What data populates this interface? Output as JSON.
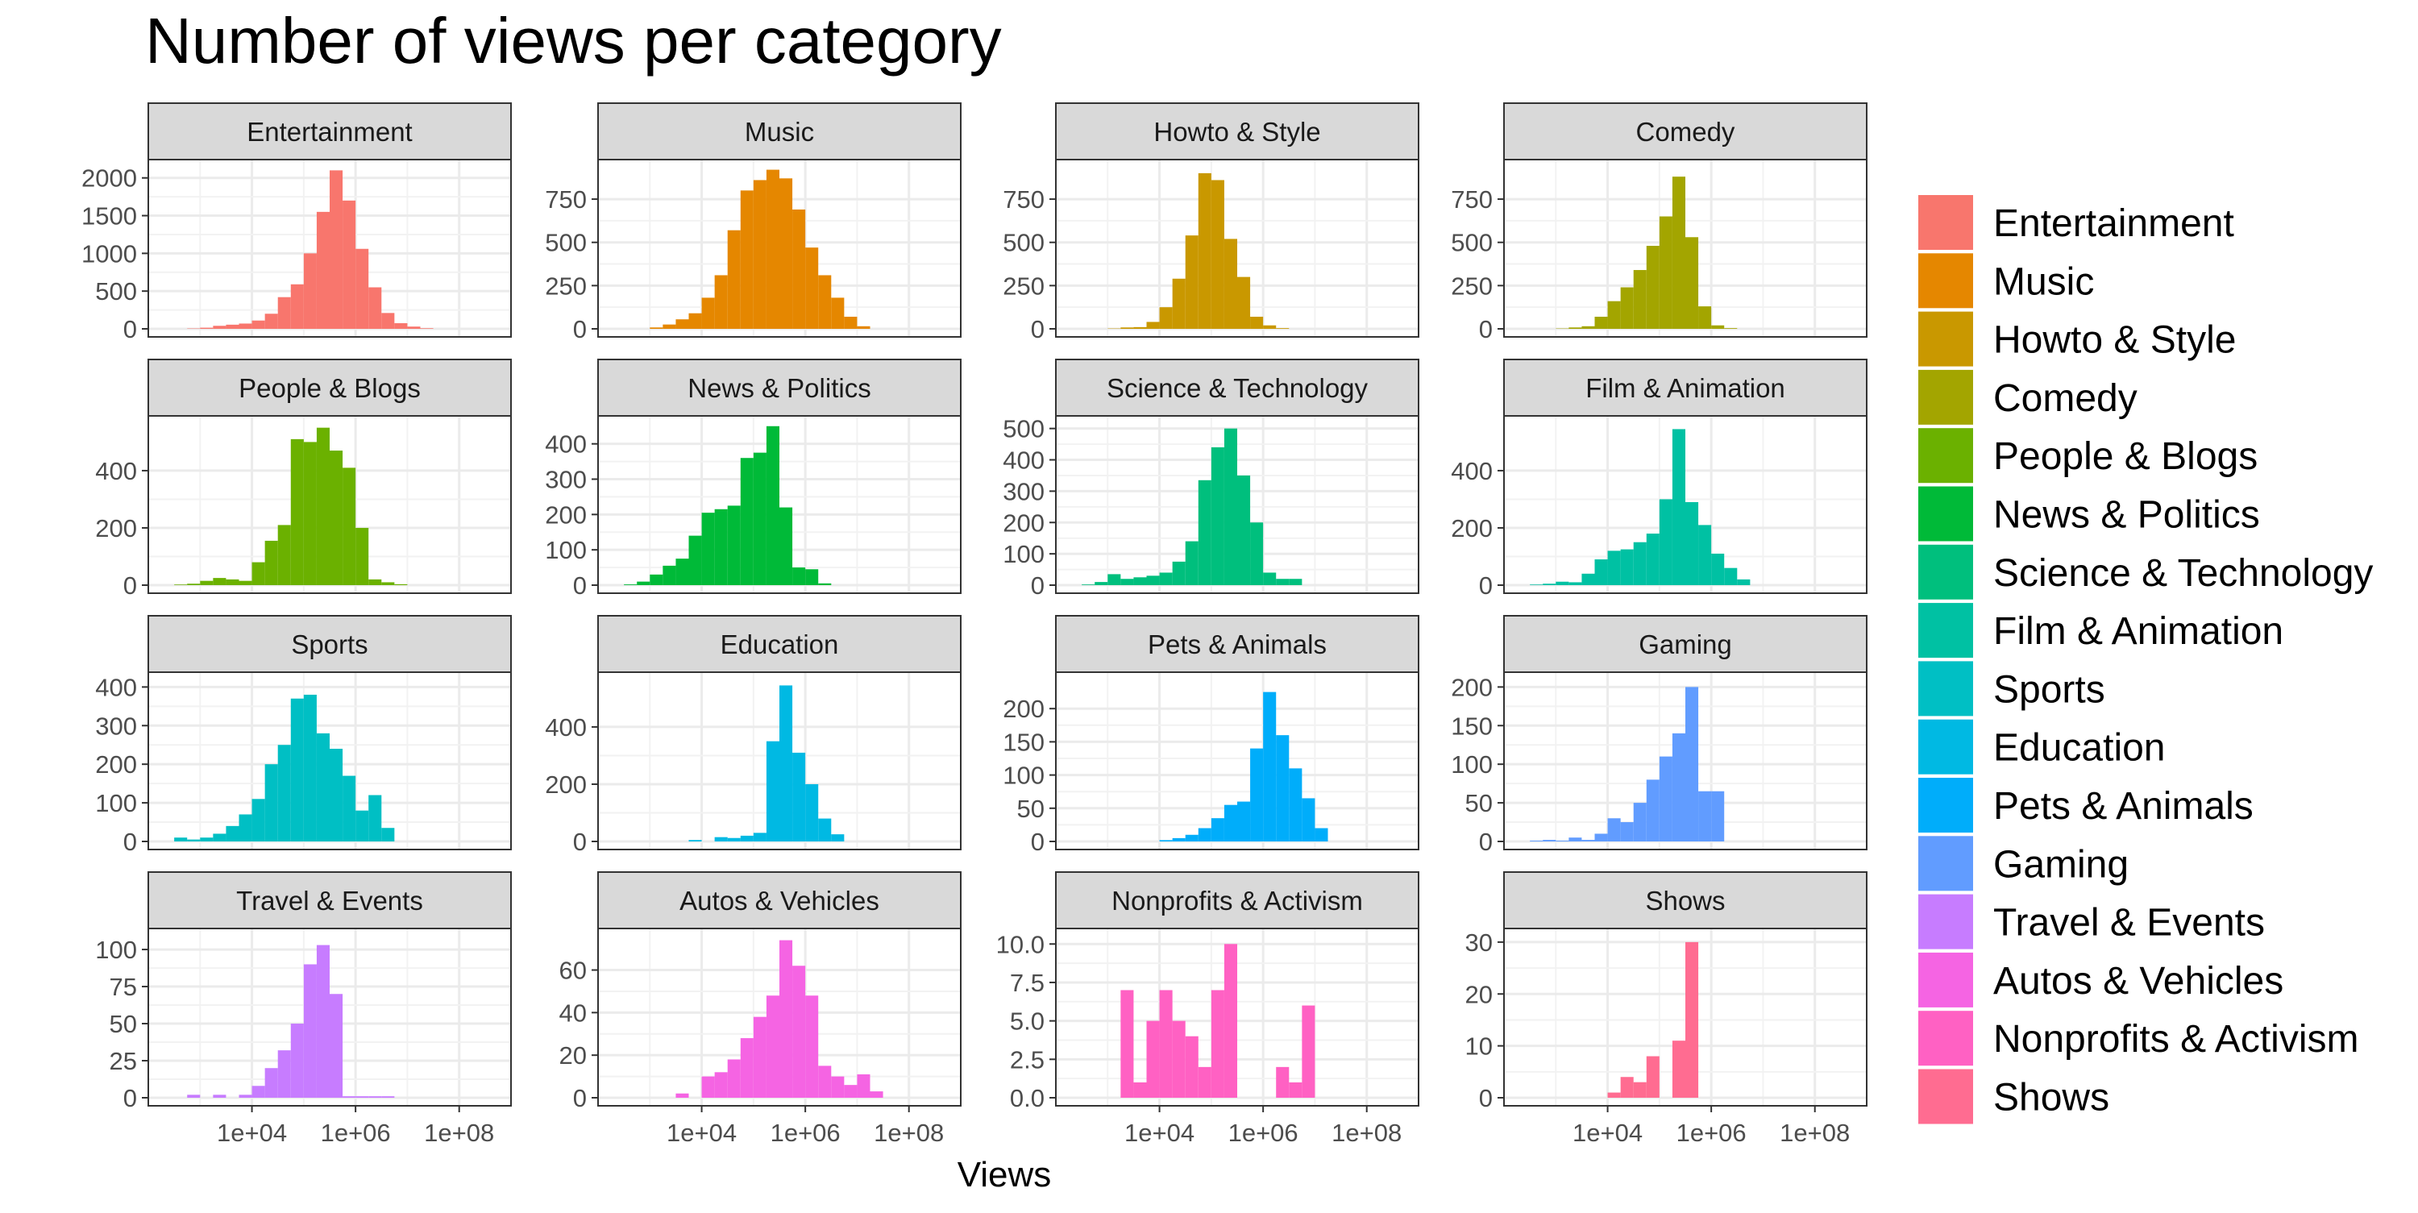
{
  "title": "Number of views per category",
  "xlabel": "Views",
  "ylabel": "",
  "chart_data": {
    "type": "bar",
    "subtype": "faceted-histogram",
    "title": "Number of views per category",
    "xlabel": "Views",
    "ylabel": "",
    "x_scale": "log10",
    "x_unit_note": "bin boundaries expressed as log10(Views)",
    "x_ticks": [
      {
        "value": 10000,
        "label": "1e+04"
      },
      {
        "value": 1000000,
        "label": "1e+06"
      },
      {
        "value": 100000000,
        "label": "1e+08"
      }
    ],
    "x_range_log10": [
      2.0,
      9.0
    ],
    "bin_width_log10": 0.25,
    "grid": true,
    "legend_position": "right",
    "facets": [
      {
        "name": "Entertainment",
        "color": "#F8766D",
        "ylim": [
          0,
          2200
        ],
        "yticks": [
          0,
          500,
          1000,
          1500,
          2000
        ],
        "bins_start_log10": 2.75,
        "counts": [
          5,
          15,
          40,
          55,
          70,
          110,
          200,
          420,
          590,
          1000,
          1550,
          2100,
          1700,
          1060,
          550,
          210,
          75,
          30,
          8
        ]
      },
      {
        "name": "Music",
        "color": "#E58700",
        "ylim": [
          0,
          960
        ],
        "yticks": [
          0,
          250,
          500,
          750
        ],
        "bins_start_log10": 3.0,
        "counts": [
          8,
          25,
          55,
          90,
          180,
          310,
          570,
          800,
          860,
          920,
          870,
          690,
          470,
          310,
          180,
          70,
          15
        ]
      },
      {
        "name": "Howto & Style",
        "color": "#C99800",
        "ylim": [
          0,
          960
        ],
        "yticks": [
          0,
          250,
          500,
          750
        ],
        "bins_start_log10": 3.0,
        "counts": [
          2,
          8,
          10,
          40,
          125,
          290,
          540,
          900,
          860,
          520,
          300,
          70,
          20,
          4
        ]
      },
      {
        "name": "Comedy",
        "color": "#A3A500",
        "ylim": [
          0,
          960
        ],
        "yticks": [
          0,
          250,
          500,
          750
        ],
        "bins_start_log10": 3.0,
        "counts": [
          2,
          8,
          15,
          70,
          160,
          240,
          340,
          480,
          650,
          880,
          530,
          130,
          20,
          4
        ]
      },
      {
        "name": "People & Blogs",
        "color": "#6BB100",
        "ylim": [
          0,
          580
        ],
        "yticks": [
          0,
          200,
          400
        ],
        "bins_start_log10": 2.5,
        "counts": [
          2,
          5,
          15,
          25,
          20,
          15,
          80,
          155,
          210,
          510,
          500,
          550,
          470,
          410,
          200,
          20,
          10,
          3
        ]
      },
      {
        "name": "News & Politics",
        "color": "#00BA38",
        "ylim": [
          0,
          470
        ],
        "yticks": [
          0,
          100,
          200,
          300,
          400
        ],
        "bins_start_log10": 2.5,
        "counts": [
          2,
          10,
          30,
          55,
          75,
          140,
          205,
          215,
          225,
          360,
          375,
          450,
          220,
          50,
          45,
          5
        ]
      },
      {
        "name": "Science & Technology",
        "color": "#00BF7D",
        "ylim": [
          0,
          530
        ],
        "yticks": [
          0,
          100,
          200,
          300,
          400,
          500
        ],
        "bins_start_log10": 2.5,
        "counts": [
          2,
          10,
          35,
          20,
          25,
          30,
          40,
          75,
          140,
          335,
          440,
          500,
          350,
          200,
          40,
          20,
          20
        ]
      },
      {
        "name": "Film & Animation",
        "color": "#00C1A3",
        "ylim": [
          0,
          580
        ],
        "yticks": [
          0,
          200,
          400
        ],
        "bins_start_log10": 2.5,
        "counts": [
          2,
          5,
          12,
          10,
          40,
          90,
          120,
          125,
          150,
          180,
          300,
          545,
          290,
          210,
          110,
          60,
          20
        ]
      },
      {
        "name": "Sports",
        "color": "#00BFC4",
        "ylim": [
          0,
          430
        ],
        "yticks": [
          0,
          100,
          200,
          300,
          400
        ],
        "bins_start_log10": 2.5,
        "counts": [
          10,
          5,
          10,
          20,
          40,
          70,
          110,
          200,
          250,
          370,
          380,
          280,
          240,
          170,
          80,
          120,
          35
        ]
      },
      {
        "name": "Education",
        "color": "#00B9E3",
        "ylim": [
          0,
          580
        ],
        "yticks": [
          0,
          200,
          400
        ],
        "bins_start_log10": 3.0,
        "counts": [
          0,
          0,
          0,
          5,
          0,
          15,
          12,
          20,
          30,
          350,
          545,
          310,
          200,
          80,
          25
        ]
      },
      {
        "name": "Pets & Animals",
        "color": "#00ADFA",
        "ylim": [
          0,
          250
        ],
        "yticks": [
          0,
          50,
          100,
          150,
          200
        ],
        "bins_start_log10": 3.0,
        "counts": [
          0,
          0,
          0,
          0,
          2,
          5,
          10,
          20,
          35,
          55,
          60,
          140,
          225,
          160,
          110,
          65,
          20
        ]
      },
      {
        "name": "Gaming",
        "color": "#619CFF",
        "ylim": [
          0,
          215
        ],
        "yticks": [
          0,
          50,
          100,
          150,
          200
        ],
        "bins_start_log10": 2.5,
        "counts": [
          1,
          2,
          1,
          5,
          2,
          10,
          30,
          25,
          50,
          80,
          110,
          140,
          200,
          65,
          65
        ]
      },
      {
        "name": "Travel & Events",
        "color": "#C77CFF",
        "ylim": [
          0,
          112
        ],
        "yticks": [
          0,
          25,
          50,
          75,
          100
        ],
        "bins_start_log10": 2.75,
        "counts": [
          2,
          0,
          2,
          0,
          2,
          8,
          20,
          32,
          50,
          90,
          103,
          70,
          1,
          1,
          1,
          1
        ]
      },
      {
        "name": "Autos & Vehicles",
        "color": "#F564E3",
        "ylim": [
          0,
          78
        ],
        "yticks": [
          0,
          20,
          40,
          60
        ],
        "bins_start_log10": 3.5,
        "counts": [
          2,
          0,
          10,
          12,
          18,
          28,
          38,
          48,
          74,
          62,
          48,
          15,
          10,
          6,
          11,
          3
        ]
      },
      {
        "name": "Nonprofits & Activism",
        "color": "#FF61C3",
        "ylim": [
          0,
          10.8
        ],
        "yticks": [
          0,
          2.5,
          5,
          7.5,
          10
        ],
        "ytick_labels": [
          "0.0",
          "2.5",
          "5.0",
          "7.5",
          "10.0"
        ],
        "bins_start_log10": 3.25,
        "counts": [
          7,
          1,
          5,
          7,
          5,
          4,
          2,
          7,
          10,
          0,
          0,
          0,
          2,
          1,
          6
        ]
      },
      {
        "name": "Shows",
        "color": "#FF6C91",
        "ylim": [
          0,
          32
        ],
        "yticks": [
          0,
          10,
          20,
          30
        ],
        "bins_start_log10": 4.0,
        "counts": [
          1,
          4,
          3,
          8,
          0,
          11,
          30
        ]
      }
    ],
    "legend": [
      {
        "label": "Entertainment",
        "color": "#F8766D"
      },
      {
        "label": "Music",
        "color": "#E58700"
      },
      {
        "label": "Howto & Style",
        "color": "#C99800"
      },
      {
        "label": "Comedy",
        "color": "#A3A500"
      },
      {
        "label": "People & Blogs",
        "color": "#6BB100"
      },
      {
        "label": "News & Politics",
        "color": "#00BA38"
      },
      {
        "label": "Science & Technology",
        "color": "#00BF7D"
      },
      {
        "label": "Film & Animation",
        "color": "#00C1A3"
      },
      {
        "label": "Sports",
        "color": "#00BFC4"
      },
      {
        "label": "Education",
        "color": "#00B9E3"
      },
      {
        "label": "Pets & Animals",
        "color": "#00ADFA"
      },
      {
        "label": "Gaming",
        "color": "#619CFF"
      },
      {
        "label": "Travel & Events",
        "color": "#C77CFF"
      },
      {
        "label": "Autos & Vehicles",
        "color": "#F564E3"
      },
      {
        "label": "Nonprofits & Activism",
        "color": "#FF61C3"
      },
      {
        "label": "Shows",
        "color": "#FF6C91"
      }
    ]
  }
}
